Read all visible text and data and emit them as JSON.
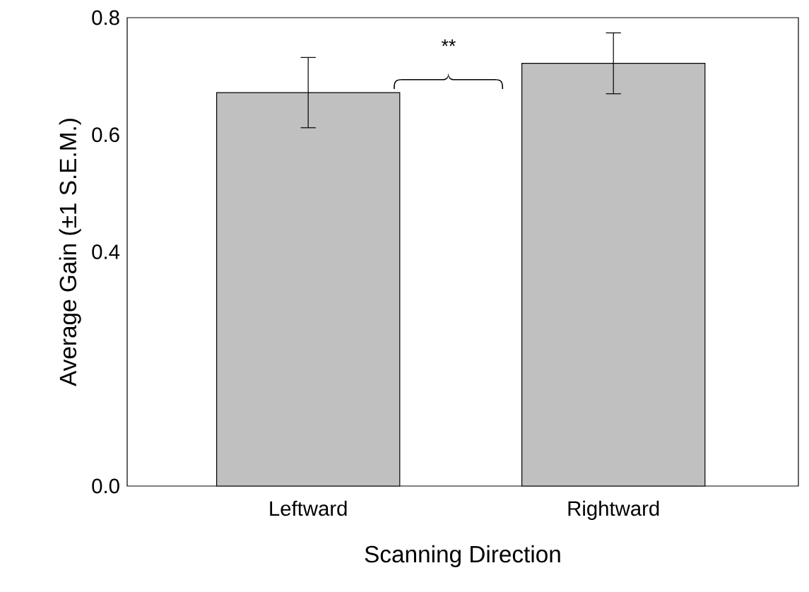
{
  "chart_data": {
    "type": "bar",
    "categories": [
      "Leftward",
      "Rightward"
    ],
    "values": [
      0.672,
      0.722
    ],
    "errors": [
      0.06,
      0.052
    ],
    "color": "#c0c0c0",
    "xlabel": "Scanning Direction",
    "ylabel": "Average Gain (±1 S.E.M.)",
    "ylim": [
      0,
      0.8
    ],
    "yticks": [
      {
        "value": 0,
        "label": "0.0"
      },
      0.4,
      0.6,
      0.8
    ],
    "annotations": [
      "**"
    ]
  }
}
